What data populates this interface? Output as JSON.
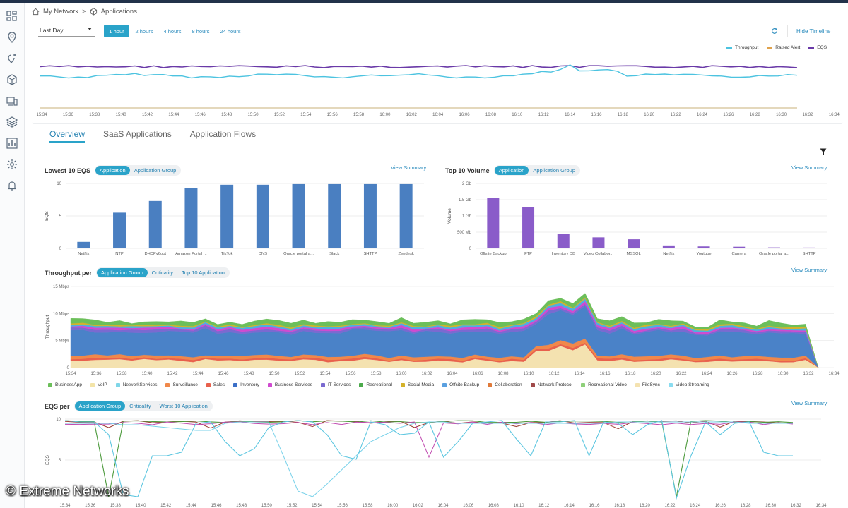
{
  "breadcrumb": {
    "root": "My Network",
    "separator": ">",
    "current": "Applications"
  },
  "sidebar": {
    "items": [
      {
        "icon": "dashboard-icon"
      },
      {
        "icon": "location-pin-icon"
      },
      {
        "icon": "pin-plus-icon"
      },
      {
        "icon": "cube-icon"
      },
      {
        "icon": "devices-icon"
      },
      {
        "icon": "layers-icon"
      },
      {
        "icon": "report-chart-icon"
      },
      {
        "icon": "gear-icon"
      },
      {
        "icon": "bell-icon"
      }
    ]
  },
  "timeline": {
    "period_select": "Last Day",
    "ranges": [
      "1 hour",
      "2 hours",
      "4 hours",
      "8 hours",
      "24 hours"
    ],
    "active_range": "1 hour",
    "hide_label": "Hide Timeline",
    "legend": [
      {
        "name": "Throughput",
        "color": "#4cc3e0"
      },
      {
        "name": "Raised Alert",
        "color": "#e0a24c"
      },
      {
        "name": "EQS",
        "color": "#6a3aa8"
      }
    ],
    "ticks": [
      "15:34",
      "15:36",
      "15:38",
      "15:40",
      "15:42",
      "15:44",
      "15:46",
      "15:48",
      "15:50",
      "15:52",
      "15:54",
      "15:56",
      "15:58",
      "16:00",
      "16:02",
      "16:04",
      "16:06",
      "16:08",
      "16:10",
      "16:12",
      "16:14",
      "16:16",
      "16:18",
      "16:20",
      "16:22",
      "16:24",
      "16:26",
      "16:28",
      "16:30",
      "16:32",
      "16:34"
    ]
  },
  "tabs": [
    {
      "label": "Overview",
      "active": true
    },
    {
      "label": "SaaS Applications",
      "active": false
    },
    {
      "label": "Application Flows",
      "active": false
    }
  ],
  "lowest_eqs": {
    "title": "Lowest 10 EQS",
    "toggles": [
      "Application",
      "Application Group"
    ],
    "view_summary": "View Summary",
    "chart_data": {
      "type": "bar",
      "ylabel": "EQS",
      "ylim": [
        0,
        10
      ],
      "yticks": [
        "10",
        "5",
        "0"
      ],
      "categories": [
        "Netflix",
        "NTP",
        "DHCPv6oot",
        "Amazon Portal ...",
        "TikTok",
        "DNS",
        "Oracle portal a...",
        "Slack",
        "SHTTP",
        "Zendesk"
      ],
      "values": [
        1.0,
        5.5,
        7.3,
        9.3,
        9.8,
        9.8,
        9.9,
        9.9,
        9.9,
        9.9
      ],
      "color": "#4a7fc1"
    }
  },
  "top_volume": {
    "title": "Top 10 Volume",
    "toggles": [
      "Application",
      "Application Group"
    ],
    "view_summary": "View Summary",
    "chart_data": {
      "type": "bar",
      "ylabel": "Volume",
      "ylim": [
        0,
        2000
      ],
      "yticks": [
        "2 Gb",
        "1.5 Gb",
        "1 Gb",
        "500 Mb",
        "0"
      ],
      "categories": [
        "Offsite Backup",
        "FTP",
        "Inventory DB",
        "Video Collabor...",
        "MSSQL",
        "Netflix",
        "Youtube",
        "Camera",
        "Oracle portal a...",
        "SHTTP"
      ],
      "values": [
        1550,
        1270,
        450,
        340,
        280,
        90,
        60,
        50,
        30,
        25
      ],
      "color": "#8a5cc9"
    }
  },
  "throughput": {
    "title": "Throughput per",
    "toggles": [
      "Application Group",
      "Criticality",
      "Top 10 Application"
    ],
    "view_summary": "View Summary",
    "chart_data": {
      "type": "area",
      "ylabel": "Throughput",
      "yticks": [
        "15 Mbps",
        "10 Mbps",
        "5 Mbps",
        "0"
      ],
      "ticks": [
        "15:34",
        "15:36",
        "15:38",
        "15:40",
        "15:42",
        "15:44",
        "15:46",
        "15:48",
        "15:50",
        "15:52",
        "15:54",
        "15:56",
        "15:58",
        "16:00",
        "16:02",
        "16:04",
        "16:06",
        "16:08",
        "16:10",
        "16:12",
        "16:14",
        "16:16",
        "16:18",
        "16:20",
        "16:22",
        "16:24",
        "16:26",
        "16:28",
        "16:30",
        "16:32",
        "16:34"
      ],
      "legend": [
        {
          "name": "BusinessApp",
          "color": "#6cbf5a"
        },
        {
          "name": "VoIP",
          "color": "#f3e4a8"
        },
        {
          "name": "NetworkServices",
          "color": "#7fd6e8"
        },
        {
          "name": "Surveillance",
          "color": "#f0884a"
        },
        {
          "name": "Sales",
          "color": "#e8604c"
        },
        {
          "name": "Inventory",
          "color": "#3b6fc7"
        },
        {
          "name": "Business Services",
          "color": "#d04ad0"
        },
        {
          "name": "IT Services",
          "color": "#7a6ad0"
        },
        {
          "name": "Recreational",
          "color": "#4caa4c"
        },
        {
          "name": "Social Media",
          "color": "#d4b22a"
        },
        {
          "name": "Offsite Backup",
          "color": "#5aa0e0"
        },
        {
          "name": "Collaboration",
          "color": "#e07a3a"
        },
        {
          "name": "Network Protocol",
          "color": "#a04a4a"
        },
        {
          "name": "Recreational Video",
          "color": "#8fd07a"
        },
        {
          "name": "FileSync",
          "color": "#f4e2b0"
        },
        {
          "name": "Video Streaming",
          "color": "#8adcf0"
        }
      ]
    }
  },
  "eqs_per": {
    "title": "EQS per",
    "toggles": [
      "Application Group",
      "Criticality",
      "Worst 10 Application"
    ],
    "view_summary": "View Summary",
    "chart_data": {
      "type": "line",
      "ylabel": "EQS",
      "yticks": [
        "10",
        "5"
      ],
      "ticks": [
        "15:34",
        "15:36",
        "15:38",
        "15:40",
        "15:42",
        "15:44",
        "15:46",
        "15:48",
        "15:50",
        "15:52",
        "15:54",
        "15:56",
        "15:58",
        "16:00",
        "16:02",
        "16:04",
        "16:06",
        "16:08",
        "16:10",
        "16:12",
        "16:14",
        "16:16",
        "16:18",
        "16:20",
        "16:22",
        "16:24",
        "16:26",
        "16:28",
        "16:30",
        "16:32",
        "16:34"
      ]
    }
  },
  "watermark": "© Extreme Networks"
}
